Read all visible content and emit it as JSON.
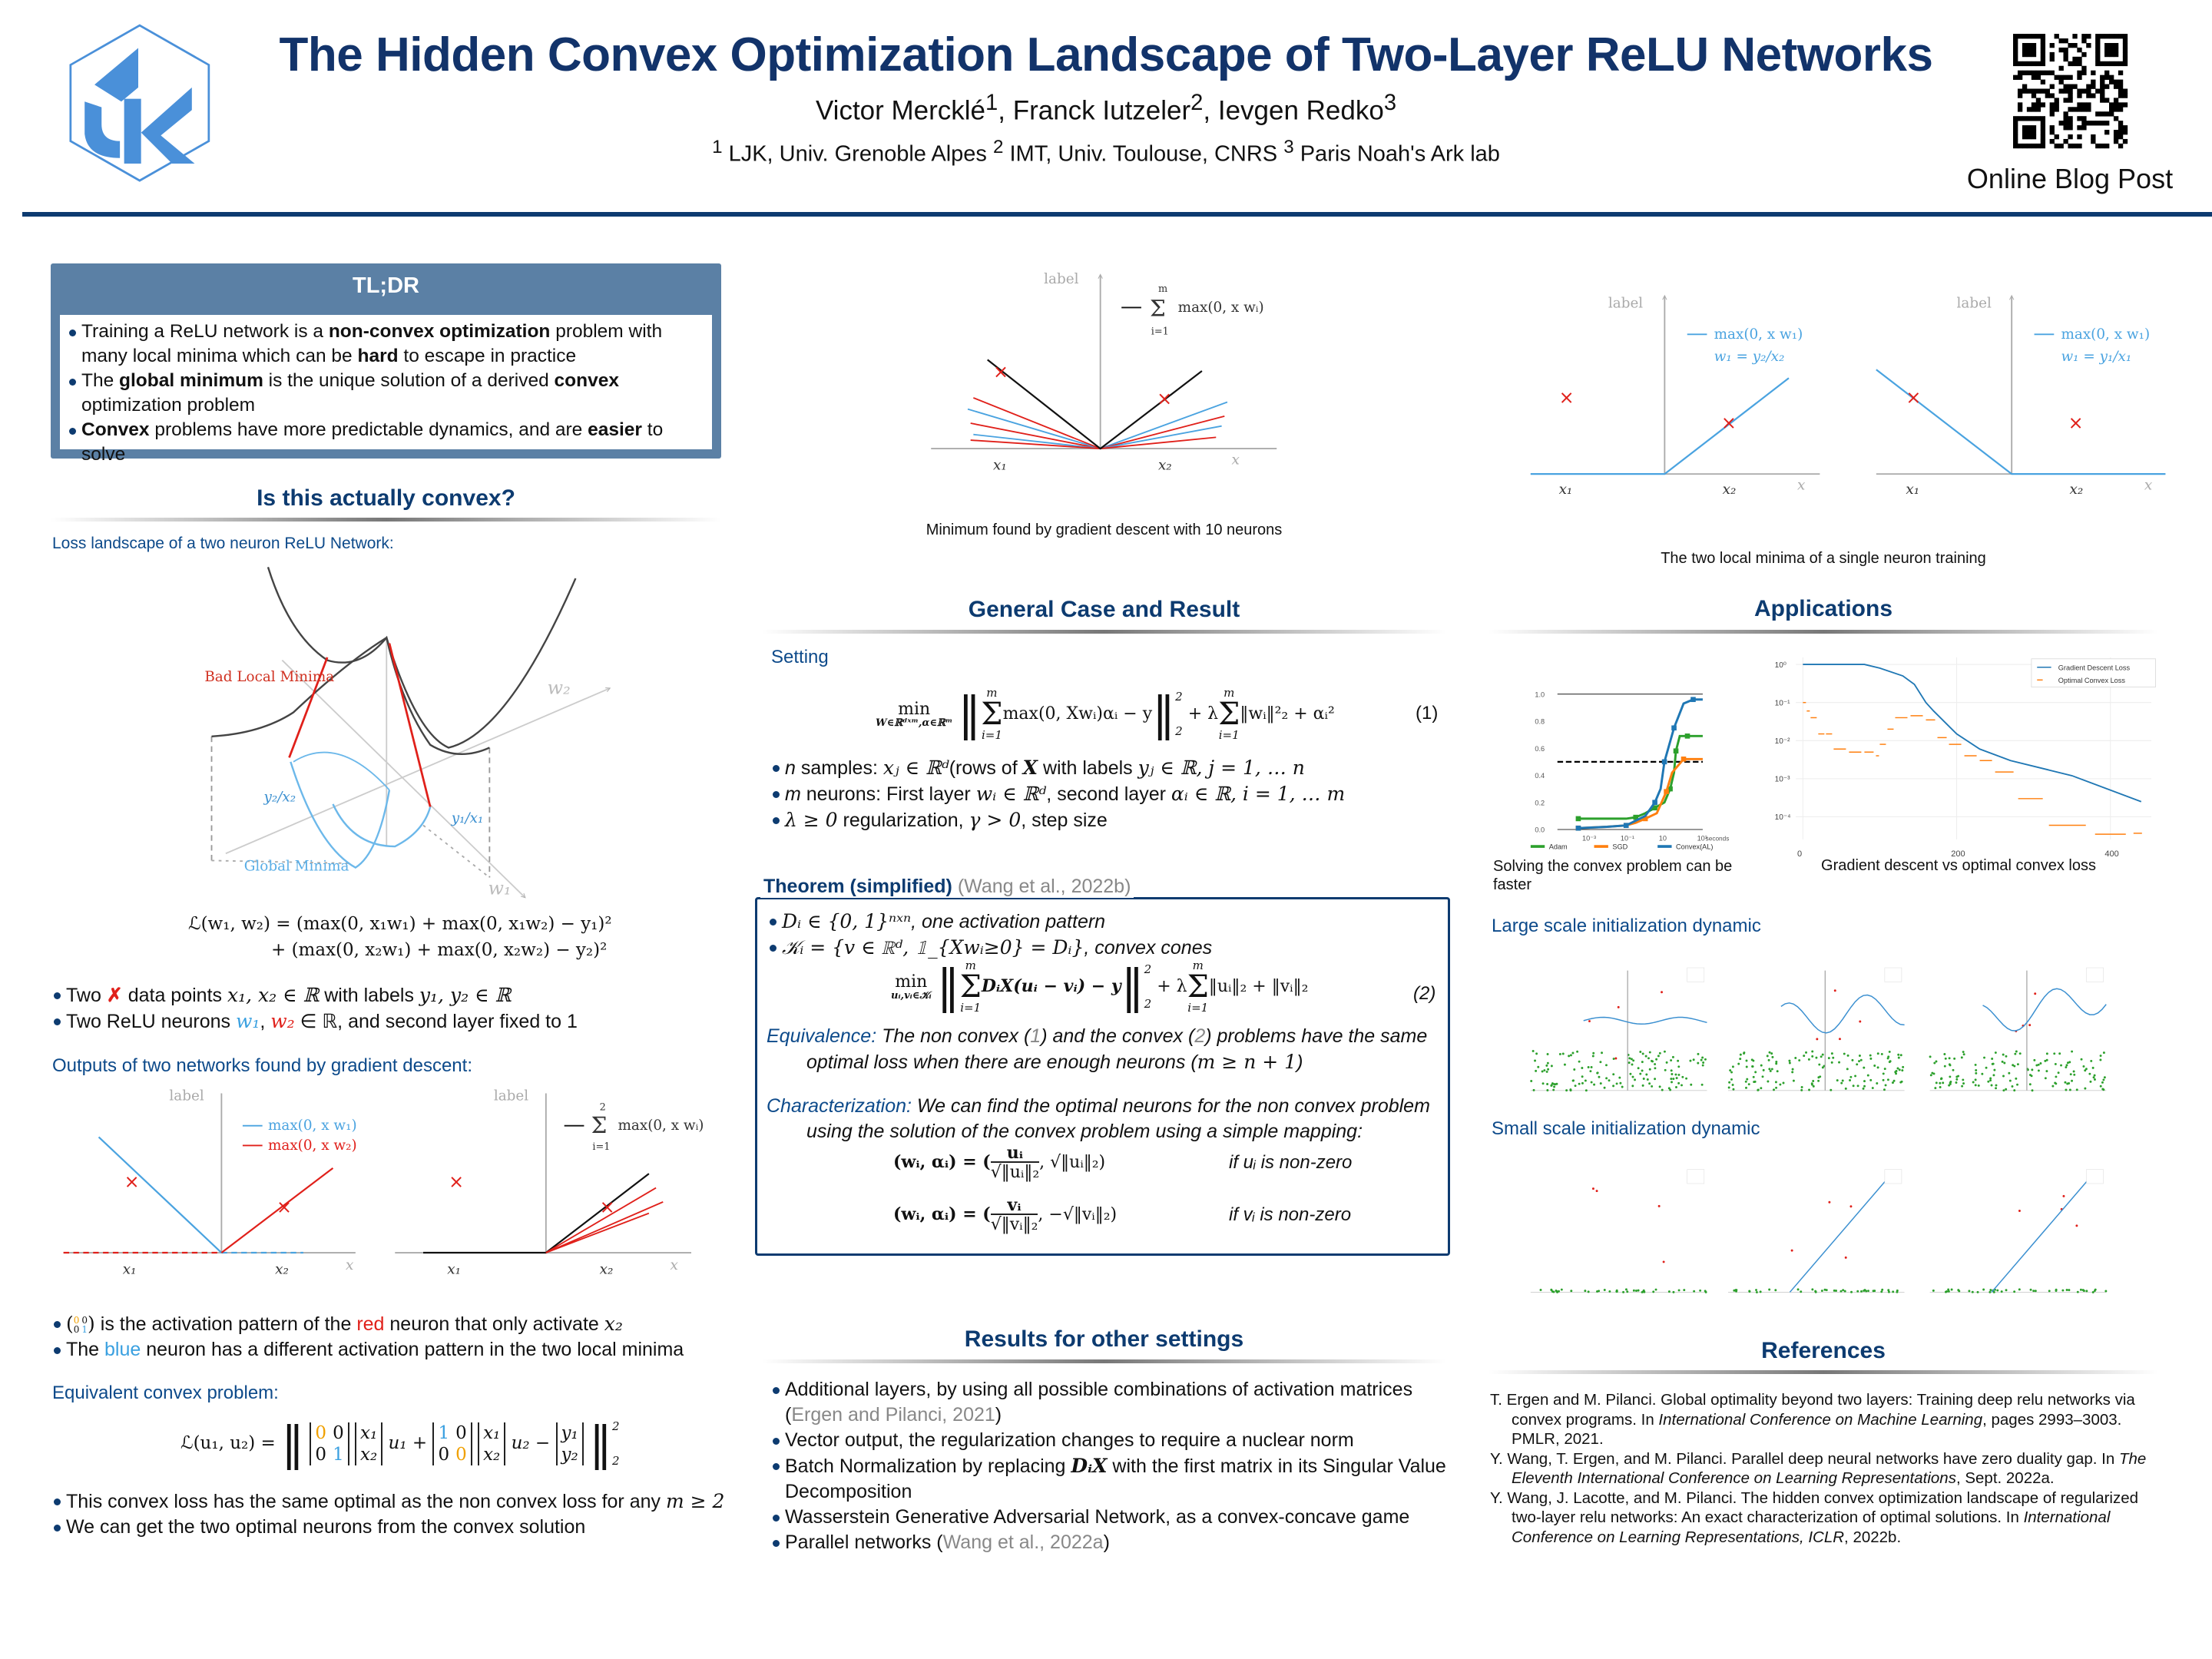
{
  "header": {
    "title": "The Hidden Convex Optimization Landscape of Two-Layer ReLU Networks",
    "authors": [
      {
        "name": "Victor Mercklé",
        "sup": "1"
      },
      {
        "name": "Franck Iutzeler",
        "sup": "2"
      },
      {
        "name": "Ievgen Redko",
        "sup": "3"
      }
    ],
    "affiliations": [
      {
        "sup": "1",
        "name": "LJK, Univ. Grenoble Alpes"
      },
      {
        "sup": "2",
        "name": "IMT, Univ. Toulouse, CNRS"
      },
      {
        "sup": "3",
        "name": "Paris Noah's Ark lab"
      }
    ],
    "logo_text": "LJK",
    "qr_label": "Online Blog Post"
  },
  "colors": {
    "navy": "#0d3b70",
    "band": "#5b80a5",
    "blue": "#3aa0e0",
    "red": "#e0201a",
    "orange": "#ff7f0e",
    "green": "#2ca02c",
    "plot_blue": "#1f77b4"
  },
  "tldr": {
    "title": "TL;DR",
    "b1": [
      "Training a ReLU network is a ",
      "non-convex optimization",
      " problem with many local minima which can be ",
      "hard",
      " to escape in practice"
    ],
    "b2": [
      "The ",
      "global minimum",
      " is the unique solution of a derived ",
      "convex",
      " optimization problem"
    ],
    "b3": [
      "Convex",
      " problems have more predictable dynamics, and are ",
      "easier",
      " to solve"
    ]
  },
  "convex_section": {
    "title": "Is this actually convex?",
    "landscape_label": "Loss landscape of a two neuron ReLU Network:",
    "fig_labels": {
      "bad": "Bad Local Minima",
      "global": "Global Minima",
      "w2": "w₂",
      "w1": "w₁",
      "y2x2": "y₂/x₂",
      "y1x1": "y₁/x₁"
    },
    "loss_lhs": "ℒ(w₁, w₂) =",
    "loss_line1": "(max(0, x₁w₁) + max(0, x₁w₂) − y₁)²",
    "loss_line2": "+  (max(0, x₂w₁) + max(0, x₂w₂) − y₂)²",
    "bullet1": [
      "Two ",
      "✗",
      " data points ",
      "x₁, x₂ ∈ ℝ",
      " with labels ",
      "y₁, y₂ ∈ ℝ"
    ],
    "bullet2": [
      "Two ReLU neurons ",
      "w₁",
      ", ",
      "w₂",
      " ∈ ℝ, and second layer fixed to 1"
    ],
    "outputs_label": "Outputs of two networks found by gradient descent:",
    "plots": {
      "ylabel": "label",
      "xlabel": "x",
      "x1": "x₁",
      "x2": "x₂",
      "leg1": "max(0, x w₁)",
      "leg2": "max(0, x w₂)",
      "leg_sum": "max(0, x wᵢ)",
      "sum_top": "2",
      "sum_bot": "i=1"
    },
    "act_bullet": [
      "is the activation pattern of the ",
      "red",
      " neuron that only activate ",
      "x₂"
    ],
    "act_matrix": [
      "0",
      "0",
      "0",
      "1"
    ],
    "blue_bullet": [
      "The ",
      "blue",
      " neuron has a different activation pattern in the two local minima"
    ],
    "equiv_label": "Equivalent convex problem:",
    "equiv": {
      "lhs": "ℒ(u₁, u₂) =",
      "m1": [
        "0",
        "0",
        "0",
        "1"
      ],
      "x": [
        "x₁",
        "x₂"
      ],
      "u1": "u₁ +",
      "m2": [
        "1",
        "0",
        "0",
        "0"
      ],
      "u2": "u₂ −",
      "y": [
        "y₁",
        "y₂"
      ],
      "sup": "2",
      "sub": "2"
    },
    "bullet3": [
      "This convex loss has the same optimal as the non convex loss for any ",
      "m ≥ 2"
    ],
    "bullet4": "We can get the two optimal neurons from the convex solution"
  },
  "middle": {
    "fig_caption": "Minimum found by gradient descent with 10 neurons",
    "fig": {
      "ylabel": "label",
      "xlabel": "x",
      "x1": "x₁",
      "x2": "x₂",
      "leg": "max(0, x wᵢ)",
      "sum_top": "m",
      "sum_bot": "i=1"
    },
    "general_title": "General Case and Result",
    "setting_label": "Setting",
    "eq1": {
      "min": "min",
      "min_sub": "W∈ℝᵈˣᵐ,α∈ℝᵐ",
      "sum_top": "m",
      "sum_bot": "i=1",
      "body1": "max(0, Xwᵢ)αᵢ − y",
      "norm_sup": "2",
      "norm_sub": "2",
      "plus": "+ λ",
      "body2": "‖wᵢ‖²₂ + αᵢ²",
      "num": "(1)"
    },
    "setting_bullets": [
      [
        "n",
        " samples: ",
        "xⱼ ∈ ℝᵈ",
        "(rows of ",
        "X",
        " with labels ",
        "yⱼ ∈ ℝ, j = 1, … n"
      ],
      [
        "m",
        " neurons: First layer ",
        "wᵢ ∈ ℝᵈ",
        ", second layer ",
        "αᵢ ∈ ℝ, i = 1, … m"
      ],
      [
        "λ ≥ 0",
        " regularization, ",
        "γ > 0",
        ", step size"
      ]
    ],
    "theorem_title": "Theorem (simplified)",
    "theorem_cite": "(Wang et al., 2022b)",
    "thm_b1": [
      "Dᵢ ∈ {0, 1}ⁿˣⁿ",
      ", one activation pattern"
    ],
    "thm_b2": [
      "𝒦ᵢ = {v ∈ ℝᵈ, 𝟙_{Xwᵢ≥0} = Dᵢ}",
      ", convex cones"
    ],
    "eq2": {
      "min": "min",
      "min_sub": "uᵢ,vᵢ∈𝒦ᵢ",
      "sum_top": "m",
      "sum_bot": "i=1",
      "body1": "DᵢX(uᵢ − vᵢ) − y",
      "norm_sup": "2",
      "norm_sub": "2",
      "plus": "+ λ",
      "body2": "‖uᵢ‖₂ + ‖vᵢ‖₂",
      "num": "(2)"
    },
    "equivalence": [
      "Equivalence:",
      " The non convex (",
      "1",
      ") and the convex (",
      "2",
      ") problems have the same optimal loss when there are enough neurons (",
      "m ≥ n + 1",
      ")"
    ],
    "characterization": [
      "Characterization:",
      " We can find the optimal neurons for the non convex problem using the solution of the convex problem using a simple mapping:"
    ],
    "map1": {
      "lhs": "(wᵢ, αᵢ) = (",
      "num": "uᵢ",
      "den": "√‖uᵢ‖₂",
      "rest": ", √‖uᵢ‖₂)",
      "cond": "if uᵢ is non-zero"
    },
    "map2": {
      "lhs": "(wᵢ, αᵢ) = (",
      "num": "vᵢ",
      "den": "√‖vᵢ‖₂",
      "rest": ", −√‖vᵢ‖₂)",
      "cond": "if vᵢ is non-zero"
    },
    "results_title": "Results for other settings",
    "results": [
      [
        "Additional layers, by using all possible combinations of activation matrices ",
        "(",
        "Ergen and Pilanci, 2021",
        ")"
      ],
      [
        "Vector output, the regularization changes to require a nuclear norm"
      ],
      [
        "Batch Normalization by replacing ",
        "DᵢX",
        " with the first matrix in its Singular Value Decomposition"
      ],
      [
        "Wasserstein Generative Adversarial Network, as a convex-concave game"
      ],
      [
        "Parallel networks (",
        "Wang et al., 2022a",
        ")"
      ]
    ]
  },
  "right": {
    "fig_caption": "The two local minima of a single neuron training",
    "fig": {
      "ylabel": "label",
      "xlabel": "x",
      "x1": "x₁",
      "x2": "x₂",
      "leg": "max(0, x w₁)",
      "w_a": "w₁ = y₂/x₂",
      "w_b": "w₁ = y₁/x₁"
    },
    "applications_title": "Applications",
    "cap_speed": "Solving the convex problem can be faster",
    "cap_loss": "Gradient descent vs optimal convex loss",
    "large_label": "Large scale initialization dynamic",
    "small_label": "Small scale initialization dynamic",
    "references_title": "References",
    "references": [
      [
        "T. Ergen and M. Pilanci.  Global optimality beyond two layers: Training deep relu networks via convex programs.  In ",
        "International Conference on Machine Learning",
        ", pages 2993–3003. PMLR, 2021."
      ],
      [
        "Y. Wang, T. Ergen, and M. Pilanci.  Parallel deep neural networks have zero duality gap.  In ",
        "The Eleventh International Conference on Learning Representations",
        ", Sept. 2022a."
      ],
      [
        "Y. Wang, J. Lacotte, and M. Pilanci. The hidden convex optimization landscape of regularized two-layer relu networks: An exact characterization of optimal solutions. In ",
        "International Conference on Learning Representations, ICLR",
        ", 2022b."
      ]
    ]
  },
  "chart_data": [
    {
      "type": "line",
      "title": "",
      "xlabel": "seconds",
      "xscale": "log",
      "x_ticks": [
        "10⁻³",
        "10⁻¹",
        "10",
        "10³"
      ],
      "x_tick_values": [
        -3,
        -1,
        1,
        3
      ],
      "y_ticks": [
        "0.0",
        "0.2",
        "0.4",
        "0.6",
        "0.8",
        "1.0"
      ],
      "ylim": [
        0,
        1
      ],
      "hline_dashed": 0.5,
      "legend": "bottom",
      "series": [
        {
          "name": "Adam",
          "color": "#2ca02c",
          "marker": "star",
          "log10_x": [
            -3.5,
            -1,
            -0.5,
            0,
            0.5,
            1,
            1.3,
            1.5,
            1.6,
            1.8,
            2.2,
            3
          ],
          "y": [
            0.08,
            0.08,
            0.09,
            0.12,
            0.16,
            0.2,
            0.3,
            0.42,
            0.58,
            0.69,
            0.69,
            0.69
          ]
        },
        {
          "name": "SGD",
          "color": "#ff7f0e",
          "marker": "square",
          "log10_x": [
            -3.5,
            -2,
            -1,
            -0.5,
            0,
            0.6,
            1.1,
            1.4,
            2,
            3
          ],
          "y": [
            0.01,
            0.02,
            0.03,
            0.05,
            0.08,
            0.12,
            0.28,
            0.42,
            0.52,
            0.52
          ]
        },
        {
          "name": "Convex(AL)",
          "color": "#1f77b4",
          "marker": "triangle",
          "log10_x": [
            -3.5,
            -2,
            -1,
            0,
            0.5,
            0.8,
            1,
            1.2,
            1.5,
            2,
            2.5,
            3
          ],
          "y": [
            0.01,
            0.02,
            0.03,
            0.1,
            0.2,
            0.3,
            0.5,
            0.6,
            0.75,
            0.93,
            0.96,
            0.96
          ]
        }
      ]
    },
    {
      "type": "line",
      "title": "",
      "yscale": "log",
      "x_ticks": [
        "0",
        "200",
        "400"
      ],
      "x_tick_values": [
        0,
        200,
        400
      ],
      "y_ticks": [
        "10⁰",
        "10⁻¹",
        "10⁻²",
        "10⁻³",
        "10⁻⁴"
      ],
      "y_tick_values": [
        0,
        -1,
        -2,
        -3,
        -4
      ],
      "xlim": [
        0,
        440
      ],
      "legend": "top-right",
      "series": [
        {
          "name": "Gradient Descent Loss",
          "color": "#1f77b4",
          "style": "line",
          "x": [
            0,
            80,
            100,
            130,
            145,
            160,
            170,
            200,
            230,
            270,
            350,
            440
          ],
          "y": [
            1,
            1,
            0.8,
            0.5,
            0.3,
            0.1,
            0.06,
            0.015,
            0.006,
            0.003,
            0.0012,
            0.00025
          ]
        },
        {
          "name": "Optimal Convex Loss",
          "color": "#ff7f0e",
          "style": "dash",
          "x": [
            0,
            5,
            10,
            20,
            30,
            40,
            60,
            80,
            95,
            100,
            110,
            120,
            140,
            160,
            175,
            190,
            210,
            230,
            250,
            280,
            320,
            380,
            430
          ],
          "y": [
            0.1,
            0.06,
            0.04,
            0.015,
            0.015,
            0.006,
            0.005,
            0.005,
            0.004,
            0.008,
            0.02,
            0.04,
            0.045,
            0.035,
            0.012,
            0.008,
            0.004,
            0.003,
            0.0015,
            0.0003,
            6e-05,
            3.5e-05,
            3.7e-05
          ]
        }
      ]
    }
  ]
}
